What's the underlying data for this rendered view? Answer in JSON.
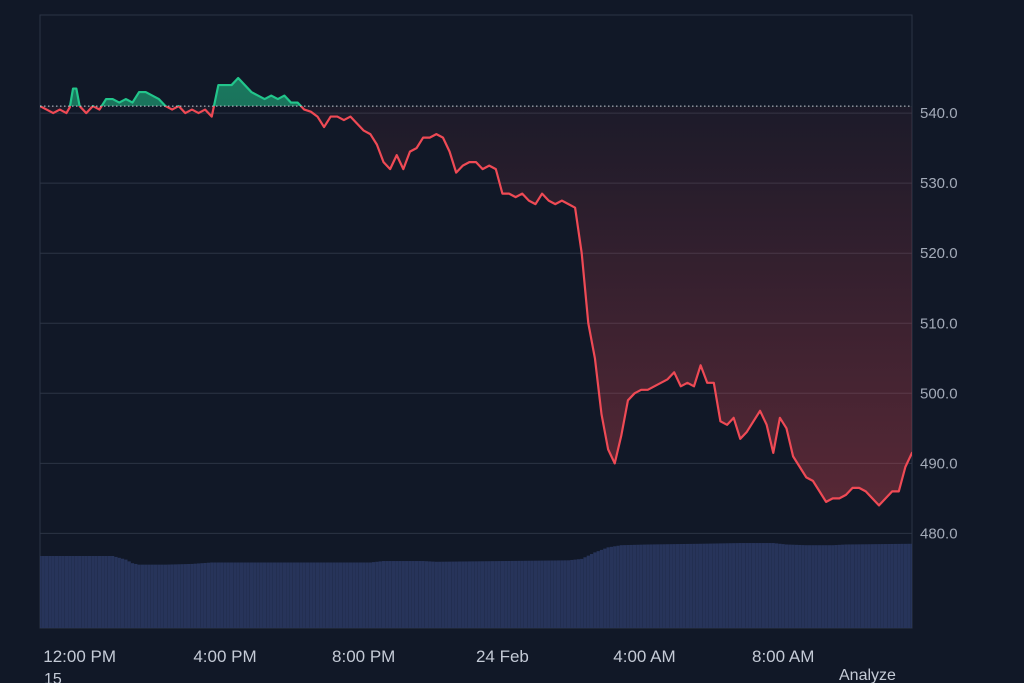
{
  "chart_data": {
    "type": "area",
    "reference_price": 541,
    "ylim": [
      466.5,
      554
    ],
    "xlim": [
      0,
      264
    ],
    "y_ticks": [
      480,
      490,
      500,
      510,
      520,
      530,
      540
    ],
    "y_tick_labels": [
      "480.0",
      "490.0",
      "500.0",
      "510.0",
      "520.0",
      "530.0",
      "540.0"
    ],
    "x_ticks": [
      {
        "x": 12,
        "label": "12:00 PM"
      },
      {
        "x": 56,
        "label": "4:00 PM"
      },
      {
        "x": 98,
        "label": "8:00 PM"
      },
      {
        "x": 140,
        "label": "24 Feb"
      },
      {
        "x": 183,
        "label": "4:00 AM"
      },
      {
        "x": 225,
        "label": "8:00 AM"
      }
    ],
    "grid": "horizontal",
    "colors": {
      "up": "#22c58b",
      "down": "#ef4a55",
      "volume": "#27345a",
      "grid": "#2c3445",
      "background": "#111827"
    },
    "price_series": [
      [
        0,
        541
      ],
      [
        2,
        540.5
      ],
      [
        4,
        540
      ],
      [
        6,
        540.5
      ],
      [
        8,
        540
      ],
      [
        9,
        540.8
      ],
      [
        10,
        543.5
      ],
      [
        11,
        543.5
      ],
      [
        12,
        541
      ],
      [
        14,
        540
      ],
      [
        16,
        541
      ],
      [
        18,
        540.5
      ],
      [
        20,
        542
      ],
      [
        22,
        542
      ],
      [
        24,
        541.5
      ],
      [
        26,
        542
      ],
      [
        28,
        541.5
      ],
      [
        30,
        543
      ],
      [
        32,
        543
      ],
      [
        34,
        542.5
      ],
      [
        36,
        542
      ],
      [
        38,
        541
      ],
      [
        40,
        540.5
      ],
      [
        42,
        541
      ],
      [
        44,
        540
      ],
      [
        46,
        540.5
      ],
      [
        48,
        540
      ],
      [
        50,
        540.5
      ],
      [
        52,
        539.5
      ],
      [
        54,
        544
      ],
      [
        56,
        544
      ],
      [
        58,
        544
      ],
      [
        60,
        545
      ],
      [
        62,
        544
      ],
      [
        64,
        543
      ],
      [
        66,
        542.5
      ],
      [
        68,
        542
      ],
      [
        70,
        542.5
      ],
      [
        72,
        542
      ],
      [
        74,
        542.5
      ],
      [
        76,
        541.5
      ],
      [
        78,
        541.5
      ],
      [
        80,
        540.5
      ],
      [
        82,
        540.2
      ],
      [
        84,
        539.5
      ],
      [
        86,
        538
      ],
      [
        88,
        539.5
      ],
      [
        90,
        539.5
      ],
      [
        92,
        539
      ],
      [
        94,
        539.5
      ],
      [
        96,
        538.5
      ],
      [
        98,
        537.5
      ],
      [
        100,
        537
      ],
      [
        102,
        535.5
      ],
      [
        104,
        533
      ],
      [
        106,
        532
      ],
      [
        108,
        534
      ],
      [
        110,
        532
      ],
      [
        112,
        534.5
      ],
      [
        114,
        535
      ],
      [
        116,
        536.5
      ],
      [
        118,
        536.5
      ],
      [
        120,
        537
      ],
      [
        122,
        536.5
      ],
      [
        124,
        534.5
      ],
      [
        126,
        531.5
      ],
      [
        128,
        532.5
      ],
      [
        130,
        533
      ],
      [
        132,
        533
      ],
      [
        134,
        532
      ],
      [
        136,
        532.5
      ],
      [
        138,
        532
      ],
      [
        140,
        528.5
      ],
      [
        142,
        528.5
      ],
      [
        144,
        528
      ],
      [
        146,
        528.5
      ],
      [
        148,
        527.5
      ],
      [
        150,
        527
      ],
      [
        152,
        528.5
      ],
      [
        154,
        527.5
      ],
      [
        156,
        527
      ],
      [
        158,
        527.5
      ],
      [
        160,
        527
      ],
      [
        162,
        526.5
      ],
      [
        164,
        520
      ],
      [
        166,
        510
      ],
      [
        168,
        505
      ],
      [
        170,
        497
      ],
      [
        172,
        492
      ],
      [
        174,
        490
      ],
      [
        176,
        494
      ],
      [
        178,
        499
      ],
      [
        180,
        500
      ],
      [
        182,
        500.5
      ],
      [
        184,
        500.5
      ],
      [
        186,
        501
      ],
      [
        188,
        501.5
      ],
      [
        190,
        502
      ],
      [
        192,
        503
      ],
      [
        194,
        501
      ],
      [
        196,
        501.5
      ],
      [
        198,
        501
      ],
      [
        200,
        504
      ],
      [
        202,
        501.5
      ],
      [
        204,
        501.5
      ],
      [
        206,
        496
      ],
      [
        208,
        495.5
      ],
      [
        210,
        496.5
      ],
      [
        212,
        493.5
      ],
      [
        214,
        494.5
      ],
      [
        216,
        496
      ],
      [
        218,
        497.5
      ],
      [
        220,
        495.5
      ],
      [
        222,
        491.5
      ],
      [
        224,
        496.5
      ],
      [
        226,
        495
      ],
      [
        228,
        491
      ],
      [
        230,
        489.5
      ],
      [
        232,
        488
      ],
      [
        234,
        487.5
      ],
      [
        236,
        486
      ],
      [
        238,
        484.5
      ],
      [
        240,
        485
      ],
      [
        242,
        485
      ],
      [
        244,
        485.5
      ],
      [
        246,
        486.5
      ],
      [
        248,
        486.5
      ],
      [
        250,
        486
      ],
      [
        252,
        485
      ],
      [
        254,
        484
      ],
      [
        256,
        485
      ],
      [
        258,
        486
      ],
      [
        260,
        486
      ],
      [
        262,
        489.5
      ],
      [
        264,
        491.5
      ],
      [
        266,
        489
      ],
      [
        268,
        487
      ],
      [
        270,
        485
      ],
      [
        272,
        484
      ]
    ],
    "volume_series": [
      [
        0,
        10
      ],
      [
        22,
        10
      ],
      [
        26,
        9.5
      ],
      [
        28,
        9
      ],
      [
        30,
        8.8
      ],
      [
        38,
        8.8
      ],
      [
        46,
        8.9
      ],
      [
        52,
        9.1
      ],
      [
        100,
        9.1
      ],
      [
        104,
        9.3
      ],
      [
        116,
        9.3
      ],
      [
        120,
        9.2
      ],
      [
        140,
        9.3
      ],
      [
        160,
        9.4
      ],
      [
        164,
        9.6
      ],
      [
        168,
        10.5
      ],
      [
        172,
        11.2
      ],
      [
        176,
        11.5
      ],
      [
        184,
        11.6
      ],
      [
        200,
        11.7
      ],
      [
        212,
        11.8
      ],
      [
        222,
        11.8
      ],
      [
        226,
        11.6
      ],
      [
        232,
        11.5
      ],
      [
        240,
        11.5
      ],
      [
        244,
        11.6
      ],
      [
        264,
        11.7
      ],
      [
        272,
        11.7
      ]
    ],
    "volume_max": 25
  },
  "footer": {
    "left_text": "15",
    "right_text": "Analyze"
  }
}
